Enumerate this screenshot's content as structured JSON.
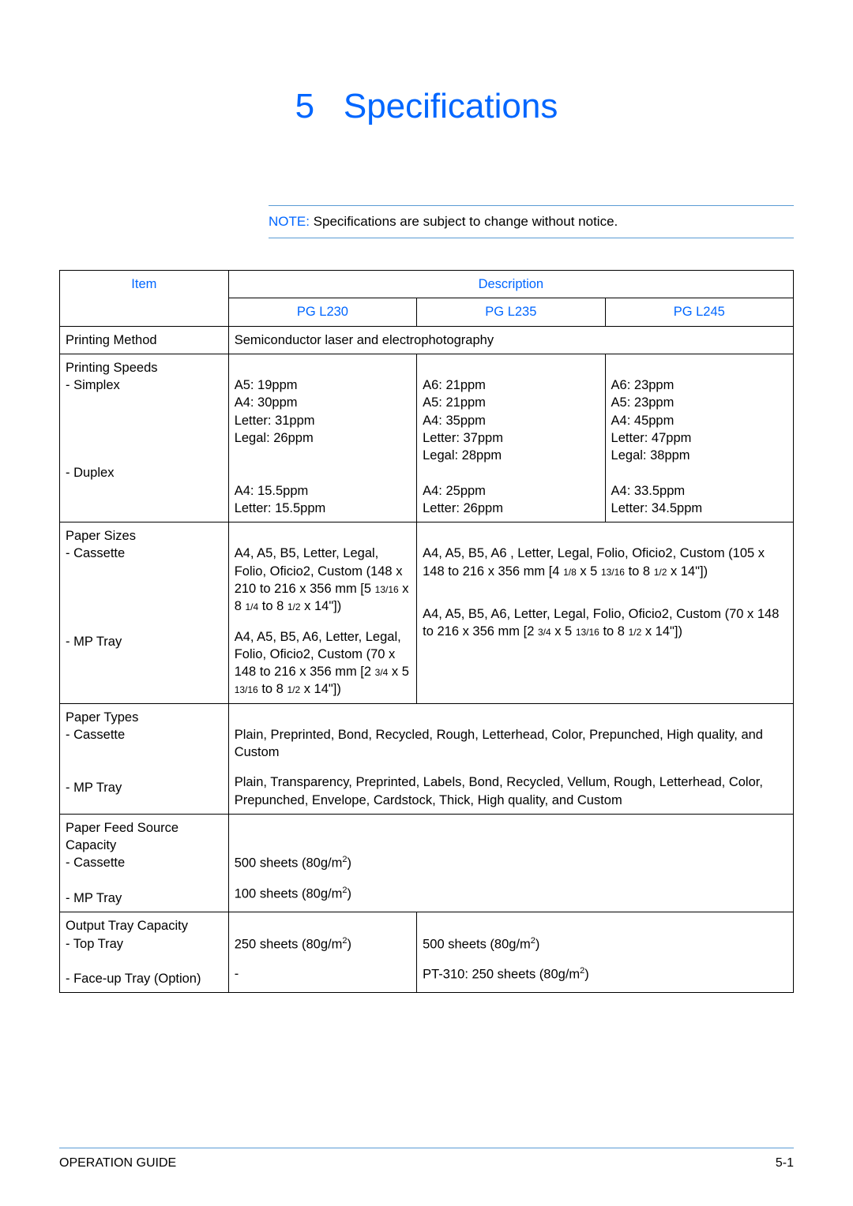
{
  "chapter": {
    "number": "5",
    "title": "Specifications"
  },
  "note": {
    "label": "NOTE:",
    "text": "Specifications are subject to change without notice."
  },
  "colors": {
    "heading": "#0066ff",
    "rule": "#5a9bd4",
    "border": "#000000",
    "text": "#000000",
    "background": "#ffffff"
  },
  "typography": {
    "title_fontsize": 44,
    "body_fontsize": 16.5,
    "note_fontsize": 17,
    "footer_fontsize": 16
  },
  "table": {
    "head": {
      "item": "Item",
      "description": "Description",
      "models": [
        "PG L230",
        "PG L235",
        "PG L245"
      ]
    },
    "rows": [
      {
        "item": "Printing Method",
        "span": true,
        "all": "Semiconductor laser and electrophotography"
      },
      {
        "item_lines": [
          "Printing Speeds",
          "- Simplex",
          "",
          "",
          "",
          "",
          "- Duplex"
        ],
        "c1_lines": [
          "",
          "A5: 19ppm",
          "A4: 30ppm",
          "Letter: 31ppm",
          "Legal: 26ppm",
          "",
          "",
          "A4: 15.5ppm",
          "Letter: 15.5ppm"
        ],
        "c2_lines": [
          "",
          "A6: 21ppm",
          "A5: 21ppm",
          "A4: 35ppm",
          "Letter: 37ppm",
          "Legal: 28ppm",
          "",
          "A4: 25ppm",
          "Letter: 26ppm"
        ],
        "c3_lines": [
          "",
          "A6: 23ppm",
          "A5: 23ppm",
          "A4: 45ppm",
          "Letter: 47ppm",
          "Legal: 38ppm",
          "",
          "A4: 33.5ppm",
          "Letter: 34.5ppm"
        ]
      },
      {
        "merge23": true,
        "item_lines": [
          "Paper Sizes",
          "- Cassette",
          "",
          "",
          "",
          "",
          "- MP Tray"
        ],
        "c1_lines_html": [
          "",
          "A4, A5, B5, Letter, Legal, Folio, Oficio2, Custom (148 x 210 to 216 x 356 mm [5 <span class=\"frac\">13/16</span> x 8 <span class=\"frac\">1/4</span> to 8 <span class=\"frac\">1/2</span> x 14\"])",
          "_GAP_",
          "A4, A5, B5, A6, Letter, Legal, Folio, Oficio2, Custom (70 x 148 to 216 x 356 mm [2 <span class=\"frac\">3/4</span> x 5 <span class=\"frac\">13/16</span> to 8 <span class=\"frac\">1/2</span> x 14\"])"
        ],
        "c23_lines_html": [
          "",
          "A4, A5, B5, A6 , Letter, Legal, Folio, Oficio2, Custom (105 x 148 to 216 x 356 mm [4 <span class=\"frac\">1/8</span> x 5 <span class=\"frac\">13/16</span> to 8 <span class=\"frac\">1/2</span> x 14\"])",
          "_GAP_",
          "_GAP_",
          "A4, A5, B5, A6, Letter, Legal, Folio, Oficio2, Custom (70 x 148 to 216 x 356 mm [2 <span class=\"frac\">3/4</span> x 5 <span class=\"frac\">13/16</span> to 8 <span class=\"frac\">1/2</span> x 14\"])"
        ]
      },
      {
        "span": true,
        "item_lines": [
          "Paper Types",
          "- Cassette",
          "",
          "",
          "- MP Tray"
        ],
        "all_lines": [
          "",
          "Plain, Preprinted, Bond, Recycled, Rough, Letterhead, Color, Prepunched, High quality, and Custom",
          "_GAP_",
          "Plain, Transparency, Preprinted, Labels, Bond, Recycled, Vellum, Rough, Letterhead, Color, Prepunched, Envelope, Cardstock, Thick, High quality, and Custom"
        ]
      },
      {
        "span": true,
        "item_lines": [
          "Paper Feed Source Capacity",
          "- Cassette",
          "",
          "- MP Tray"
        ],
        "all_lines_html": [
          "",
          "",
          "500 sheets (80g/m<span class=\"sup\">2</span>)",
          "_GAP_",
          "100 sheets (80g/m<span class=\"sup\">2</span>)"
        ]
      },
      {
        "merge23": true,
        "item_lines": [
          "Output Tray Capacity",
          "- Top Tray",
          "",
          "- Face-up Tray (Option)"
        ],
        "c1_lines_html": [
          "",
          "250 sheets (80g/m<span class=\"sup\">2</span>)",
          "_GAP_",
          "-"
        ],
        "c23_lines_html": [
          "",
          "500 sheets (80g/m<span class=\"sup\">2</span>)",
          "_GAP_",
          "PT-310: 250 sheets (80g/m<span class=\"sup\">2</span>)"
        ]
      }
    ]
  },
  "footer": {
    "left": "OPERATION GUIDE",
    "right": "5-1"
  }
}
